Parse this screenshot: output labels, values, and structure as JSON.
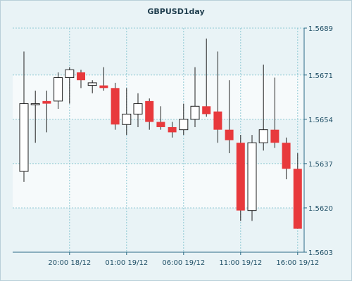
{
  "chart_data": {
    "type": "candlestick",
    "title": "GBPUSD1day",
    "x_tick_labels": [
      "20:00 18/12",
      "01:00 19/12",
      "06:00 19/12",
      "11:00 19/12",
      "16:00 19/12"
    ],
    "y_ticks": [
      1.5689,
      1.5671,
      1.5654,
      1.5637,
      1.562,
      1.5603
    ],
    "y_tick_labels": [
      "1.5689",
      "1.5671",
      "1.5654",
      "1.5637",
      "1.5620",
      "1.5603"
    ],
    "ylim": [
      1.5603,
      1.5689
    ],
    "grid": true,
    "colors": {
      "up": "#ffffff",
      "down": "#e8393c",
      "frame": "#2b6a85",
      "grid": "#90c9d4",
      "band": "#f6fafb"
    },
    "candles": [
      {
        "open": 1.5634,
        "high": 1.568,
        "low": 1.563,
        "close": 1.566
      },
      {
        "open": 1.566,
        "high": 1.5665,
        "low": 1.5645,
        "close": 1.566
      },
      {
        "open": 1.5661,
        "high": 1.5665,
        "low": 1.5649,
        "close": 1.566
      },
      {
        "open": 1.5661,
        "high": 1.5672,
        "low": 1.5658,
        "close": 1.567
      },
      {
        "open": 1.567,
        "high": 1.5674,
        "low": 1.566,
        "close": 1.5673
      },
      {
        "open": 1.5672,
        "high": 1.5673,
        "low": 1.5666,
        "close": 1.5669
      },
      {
        "open": 1.5667,
        "high": 1.5669,
        "low": 1.5664,
        "close": 1.5668
      },
      {
        "open": 1.5667,
        "high": 1.5674,
        "low": 1.5665,
        "close": 1.5666
      },
      {
        "open": 1.5666,
        "high": 1.5668,
        "low": 1.565,
        "close": 1.5652
      },
      {
        "open": 1.5652,
        "high": 1.5666,
        "low": 1.5648,
        "close": 1.5656
      },
      {
        "open": 1.5656,
        "high": 1.5664,
        "low": 1.5651,
        "close": 1.566
      },
      {
        "open": 1.5661,
        "high": 1.5662,
        "low": 1.565,
        "close": 1.5653
      },
      {
        "open": 1.5653,
        "high": 1.5659,
        "low": 1.565,
        "close": 1.5651
      },
      {
        "open": 1.5651,
        "high": 1.5653,
        "low": 1.5647,
        "close": 1.5649
      },
      {
        "open": 1.565,
        "high": 1.566,
        "low": 1.5648,
        "close": 1.5654
      },
      {
        "open": 1.5654,
        "high": 1.5674,
        "low": 1.5651,
        "close": 1.5659
      },
      {
        "open": 1.5659,
        "high": 1.5685,
        "low": 1.5655,
        "close": 1.5656
      },
      {
        "open": 1.5657,
        "high": 1.568,
        "low": 1.5645,
        "close": 1.565
      },
      {
        "open": 1.565,
        "high": 1.5669,
        "low": 1.5641,
        "close": 1.5646
      },
      {
        "open": 1.5645,
        "high": 1.5648,
        "low": 1.5615,
        "close": 1.5619
      },
      {
        "open": 1.5619,
        "high": 1.5648,
        "low": 1.5615,
        "close": 1.5645
      },
      {
        "open": 1.5645,
        "high": 1.5675,
        "low": 1.5642,
        "close": 1.565
      },
      {
        "open": 1.565,
        "high": 1.567,
        "low": 1.5643,
        "close": 1.5645
      },
      {
        "open": 1.5645,
        "high": 1.5647,
        "low": 1.5631,
        "close": 1.5635
      },
      {
        "open": 1.5635,
        "high": 1.5641,
        "low": 1.5612,
        "close": 1.5612
      }
    ]
  }
}
